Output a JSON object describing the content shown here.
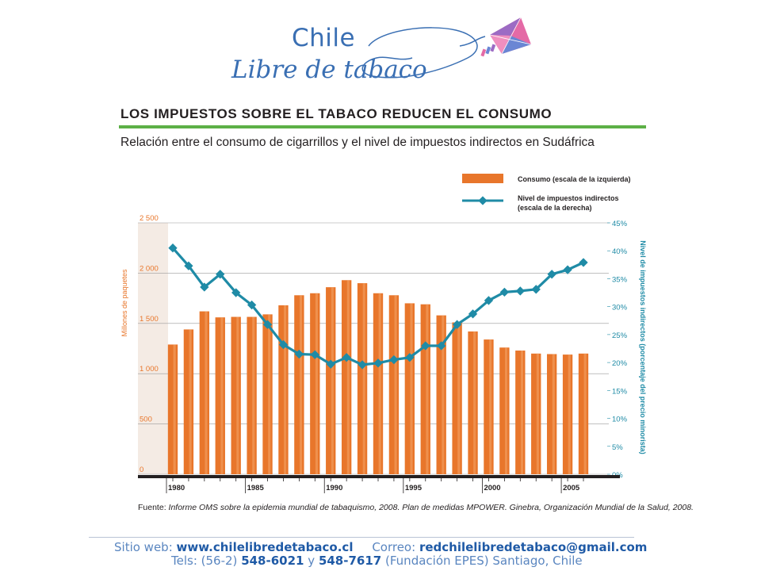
{
  "logo": {
    "line1": "Chile",
    "line2": "Libre de tabaco",
    "icon": "kite-icon"
  },
  "header": {
    "title": "LOS IMPUESTOS SOBRE EL TABACO REDUCEN EL CONSUMO",
    "subtitle": "Relación entre el consumo de cigarrillos y el nivel de impuestos indirectos en Sudáfrica"
  },
  "source": {
    "label": "Fuente:",
    "text": "Informe OMS sobre la epidemia mundial de tabaquismo, 2008. Plan de medidas MPOWER. Ginebra, Organización Mundial de la Salud, 2008."
  },
  "footer": {
    "web_label": "Sitio web:",
    "web_value": "www.chilelibredetabaco.cl",
    "mail_label": "Correo:",
    "mail_value": "redchilelibredetabaco@gmail.com",
    "tels_label": "Tels: (56-2)",
    "tel1": "548-6021",
    "tels_y": "y",
    "tel2": "548-7617",
    "org": "(Fundación EPES)  Santiago, Chile"
  },
  "chart_data": {
    "type": "bar",
    "title": "LOS IMPUESTOS SOBRE EL TABACO REDUCEN EL CONSUMO",
    "subtitle": "Relación entre el consumo de cigarrillos y el nivel de impuestos indirectos en Sudáfrica",
    "x": [
      1980,
      1981,
      1982,
      1983,
      1984,
      1985,
      1986,
      1987,
      1988,
      1989,
      1990,
      1991,
      1992,
      1993,
      1994,
      1995,
      1996,
      1997,
      1998,
      1999,
      2000,
      2001,
      2002,
      2003,
      2004,
      2005,
      2006
    ],
    "x_tick_labels": [
      "1980",
      "1985",
      "1990",
      "1995",
      "2000",
      "2005"
    ],
    "x_tick_values": [
      1980,
      1985,
      1990,
      1995,
      2000,
      2005
    ],
    "ylabel": "Millones de paquetes",
    "y2label": "Nivel de impuestos indirectos (porcentaje del precio minorista)",
    "ylim": [
      0,
      2500
    ],
    "y2lim": [
      0,
      45
    ],
    "y_ticks": [
      "0",
      "500",
      "1 000",
      "1 500",
      "2 000",
      "2 500"
    ],
    "y_tick_values": [
      0,
      500,
      1000,
      1500,
      2000,
      2500
    ],
    "y2_ticks": [
      "0%",
      "5%",
      "10%",
      "15%",
      "20%",
      "25%",
      "30%",
      "35%",
      "40%",
      "45%"
    ],
    "y2_tick_values": [
      0,
      5,
      10,
      15,
      20,
      25,
      30,
      35,
      40,
      45
    ],
    "grid": true,
    "legend_position": "top-right",
    "series": [
      {
        "name": "Consumo (escala de la izquierda)",
        "type": "bar",
        "axis": "left",
        "color": "#e8762b",
        "values": [
          1290,
          1440,
          1620,
          1560,
          1565,
          1565,
          1590,
          1680,
          1780,
          1800,
          1860,
          1930,
          1900,
          1800,
          1780,
          1700,
          1690,
          1580,
          1510,
          1420,
          1340,
          1260,
          1230,
          1200,
          1195,
          1190,
          1200
        ]
      },
      {
        "name": "Nivel de impuestos indirectos (escala de la derecha)",
        "type": "line",
        "axis": "right",
        "color": "#1f8ba6",
        "values": [
          40.5,
          37.3,
          33.5,
          35.8,
          32.5,
          30.3,
          26.8,
          23.2,
          21.5,
          21.4,
          19.7,
          20.9,
          19.6,
          19.9,
          20.5,
          20.9,
          23.0,
          23.0,
          26.8,
          28.7,
          31.1,
          32.6,
          32.8,
          33.1,
          35.8,
          36.6,
          37.9
        ]
      }
    ]
  }
}
